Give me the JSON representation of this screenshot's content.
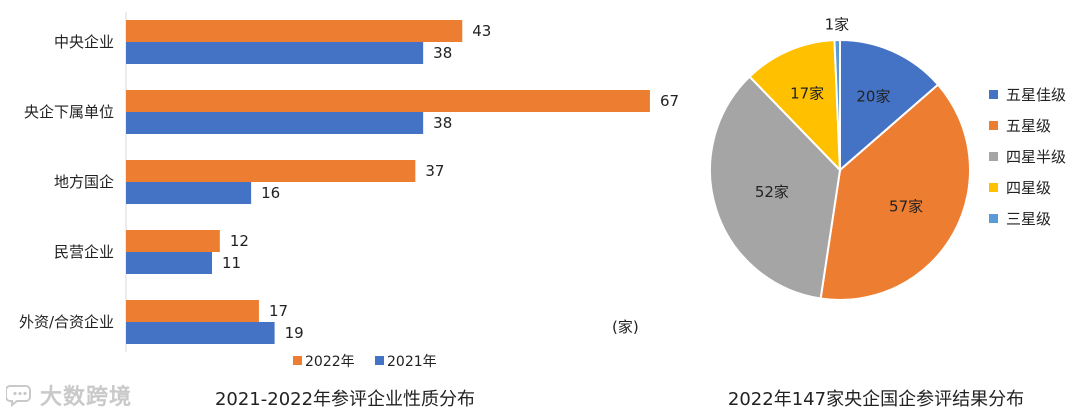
{
  "watermark": {
    "text": "大数跨境",
    "icon": "chat-bubble-icon"
  },
  "colors": {
    "orange": "#ED7D31",
    "blue": "#4472C4",
    "gray": "#A5A5A5",
    "yellow": "#FFC000",
    "light_blue": "#5B9BD5"
  },
  "chart_data": [
    {
      "type": "bar",
      "orientation": "horizontal",
      "title": "2021-2022年参评企业性质分布",
      "unit": "(家)",
      "categories": [
        "中央企业",
        "央企下属单位",
        "地方国企",
        "民营企业",
        "外资/合资企业"
      ],
      "series": [
        {
          "name": "2022年",
          "color": "#ED7D31",
          "values": [
            43,
            67,
            37,
            12,
            17
          ]
        },
        {
          "name": "2021年",
          "color": "#4472C4",
          "values": [
            38,
            38,
            16,
            11,
            19
          ]
        }
      ],
      "legend_position": "bottom",
      "xlim": [
        0,
        70
      ],
      "grid": false
    },
    {
      "type": "pie",
      "title": "2022年147家央企国企参评结果分布",
      "slices": [
        {
          "name": "五星佳级",
          "value": 20,
          "label": "20家",
          "color": "#4472C4"
        },
        {
          "name": "五星级",
          "value": 57,
          "label": "57家",
          "color": "#ED7D31"
        },
        {
          "name": "四星半级",
          "value": 52,
          "label": "52家",
          "color": "#A5A5A5"
        },
        {
          "name": "四星级",
          "value": 17,
          "label": "17家",
          "color": "#FFC000"
        },
        {
          "name": "三星级",
          "value": 1,
          "label": "1家",
          "color": "#5B9BD5"
        }
      ],
      "legend_position": "right"
    }
  ]
}
